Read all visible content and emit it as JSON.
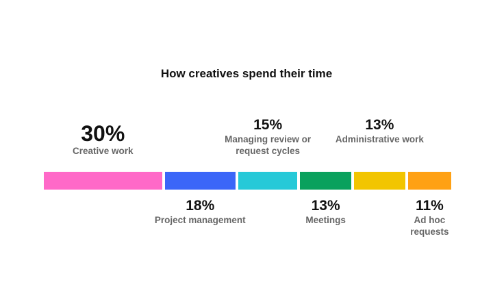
{
  "chart_data": {
    "type": "bar",
    "subtype": "stacked-horizontal-100",
    "title": "How creatives spend their time",
    "categories": [
      "Creative work",
      "Project management",
      "Managing review or request cycles",
      "Meetings",
      "Administrative work",
      "Ad hoc requests"
    ],
    "values": [
      30,
      18,
      15,
      13,
      13,
      11
    ],
    "labels": [
      "30%",
      "18%",
      "15%",
      "13%",
      "13%",
      "11%"
    ],
    "colors": [
      "#ff69c8",
      "#3b66f8",
      "#26c9d8",
      "#0aa15d",
      "#f2c500",
      "#ffa114"
    ],
    "label_positions": [
      "above",
      "below",
      "above",
      "below",
      "above",
      "below"
    ]
  }
}
